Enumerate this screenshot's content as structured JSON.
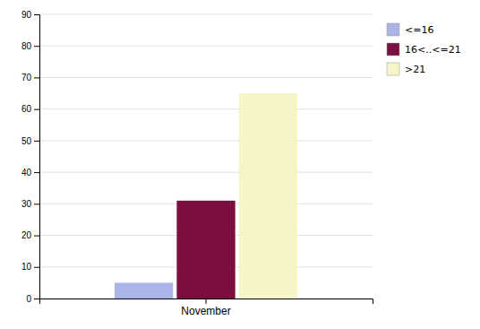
{
  "chart_data": {
    "type": "bar",
    "categories": [
      "November"
    ],
    "series": [
      {
        "name": "<=16",
        "color": "#aab4e8",
        "values": [
          5
        ]
      },
      {
        "name": "16<..<=21",
        "color": "#7b1040",
        "values": [
          31
        ]
      },
      {
        "name": ">21",
        "color": "#f5f5c8",
        "values": [
          65
        ]
      }
    ],
    "ylim": [
      0,
      90
    ],
    "yticks": [
      0,
      10,
      20,
      30,
      40,
      50,
      60,
      70,
      80,
      90
    ],
    "grid": true,
    "legend": "right"
  }
}
